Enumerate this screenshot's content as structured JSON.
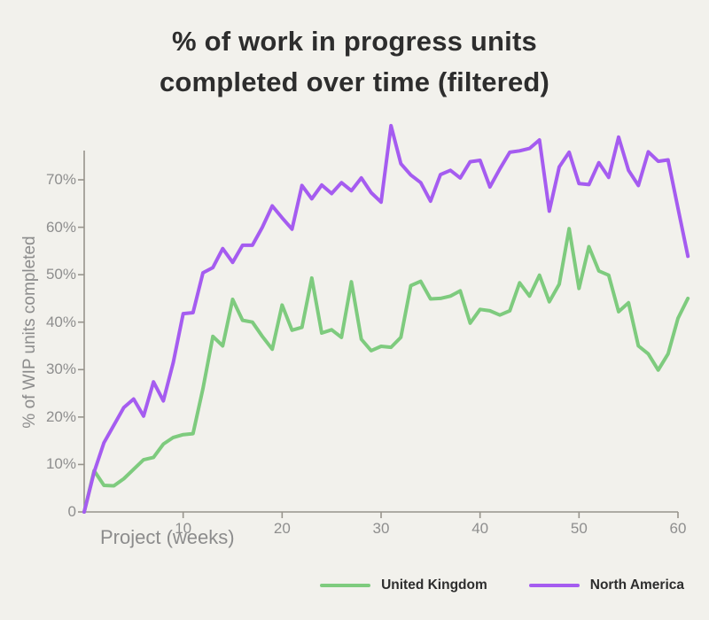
{
  "title": {
    "line1": "% of work in progress units",
    "line2": "completed over time (filtered)"
  },
  "chart_data": {
    "type": "line",
    "title": "% of work in progress units completed over time (filtered)",
    "xlabel": "Project (weeks)",
    "ylabel": "% of WIP units completed",
    "grid": false,
    "legend_position": "bottom-right",
    "x_ticks": [
      10,
      20,
      30,
      40,
      50,
      60
    ],
    "y_ticks": [
      {
        "value": 0,
        "label": "0"
      },
      {
        "value": 10,
        "label": "10%"
      },
      {
        "value": 20,
        "label": "20%"
      },
      {
        "value": 30,
        "label": "30%"
      },
      {
        "value": 40,
        "label": "40%"
      },
      {
        "value": 50,
        "label": "50%"
      },
      {
        "value": 60,
        "label": "60%"
      },
      {
        "value": 70,
        "label": "70%"
      }
    ],
    "xlim": [
      0,
      61
    ],
    "ylim": [
      0,
      82
    ],
    "x": [
      0,
      1,
      2,
      3,
      4,
      5,
      6,
      7,
      8,
      9,
      10,
      11,
      12,
      13,
      14,
      15,
      16,
      17,
      18,
      19,
      20,
      21,
      22,
      23,
      24,
      25,
      26,
      27,
      28,
      29,
      30,
      31,
      32,
      33,
      34,
      35,
      36,
      37,
      38,
      39,
      40,
      41,
      42,
      43,
      44,
      45,
      46,
      47,
      48,
      49,
      50,
      51,
      52,
      53,
      54,
      55,
      56,
      57,
      58,
      59,
      60,
      61
    ],
    "series": [
      {
        "name": "United Kingdom",
        "color": "#7ecb7e",
        "values": [
          0,
          8.7,
          5.6,
          5.5,
          7,
          9,
          11,
          11.5,
          14.3,
          15.7,
          16.3,
          16.5,
          26,
          37,
          35,
          44.8,
          40.4,
          40,
          37,
          34.3,
          43.6,
          38.3,
          38.9,
          49.3,
          37.7,
          38.4,
          36.8,
          48.5,
          36.4,
          34,
          34.9,
          34.7,
          36.8,
          47.7,
          48.6,
          44.9,
          45,
          45.5,
          46.6,
          39.8,
          42.7,
          42.4,
          41.5,
          42.4,
          48.3,
          45.5,
          49.9,
          44.3,
          48,
          59.7,
          47.1,
          55.9,
          50.8,
          49.9,
          42.2,
          44.1,
          35,
          33.3,
          29.9,
          33.3,
          40.8,
          45
        ]
      },
      {
        "name": "North America",
        "color": "#a55cf0",
        "values": [
          0,
          8.4,
          14.6,
          18.3,
          22,
          23.8,
          20.2,
          27.4,
          23.4,
          31.5,
          41.8,
          42,
          50.4,
          51.5,
          55.5,
          52.6,
          56.2,
          56.2,
          60,
          64.5,
          62,
          59.6,
          68.8,
          66,
          68.9,
          67.1,
          69.4,
          67.7,
          70.4,
          67.3,
          65.3,
          81.4,
          73.4,
          71,
          69.4,
          65.5,
          71.1,
          72,
          70.4,
          73.8,
          74.1,
          68.5,
          72.3,
          75.8,
          76.1,
          76.6,
          78.4,
          63.4,
          72.7,
          75.8,
          69.2,
          69,
          73.6,
          70.5,
          79,
          72,
          68.8,
          75.9,
          73.9,
          74.2,
          64,
          53.9
        ]
      }
    ]
  },
  "colors": {
    "background": "#f2f1ec",
    "title_text": "#2d2d2d",
    "axis_line": "#97948c",
    "tick_text": "#8e8e8e",
    "uk_line": "#7ecb7e",
    "na_line": "#a55cf0"
  }
}
